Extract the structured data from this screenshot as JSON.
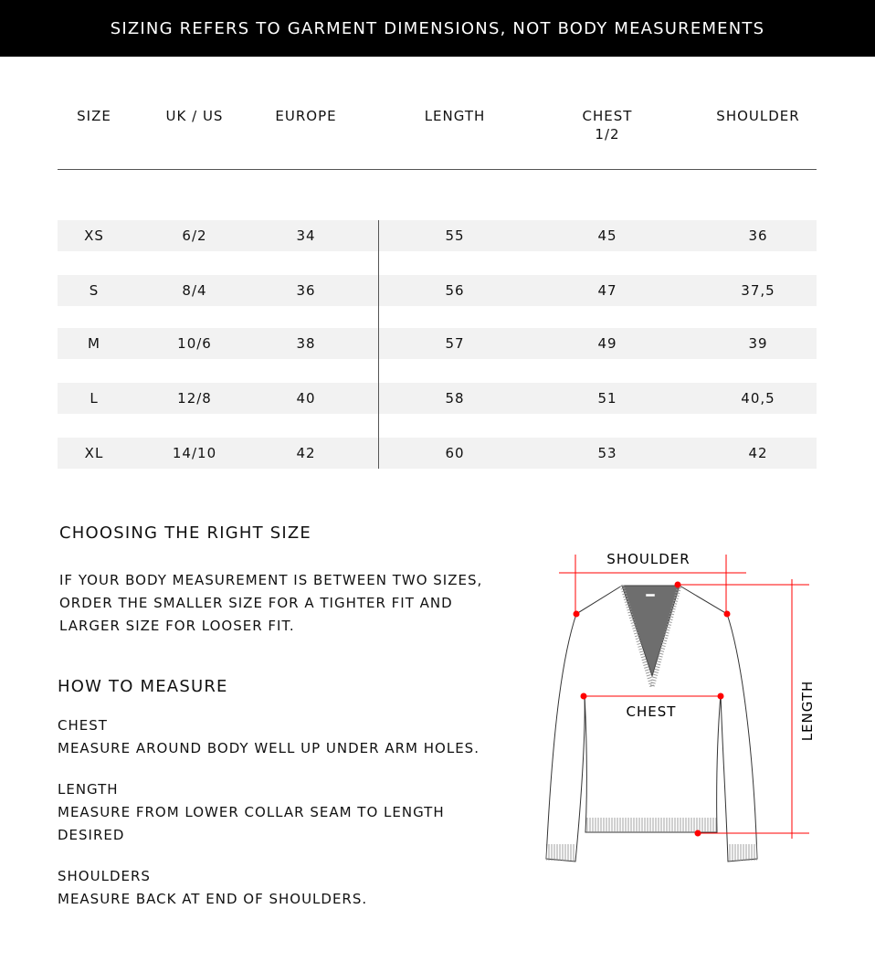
{
  "banner": "SIZING REFERS TO GARMENT DIMENSIONS, NOT BODY MEASUREMENTS",
  "table": {
    "headers": [
      "SIZE",
      "UK / US",
      "EUROPE",
      "LENGTH",
      "CHEST\n1/2",
      "SHOULDER"
    ],
    "rows": [
      [
        "XS",
        "6/2",
        "34",
        "55",
        "45",
        "36"
      ],
      [
        "S",
        "8/4",
        "36",
        "56",
        "47",
        "37,5"
      ],
      [
        "M",
        "10/6",
        "38",
        "57",
        "49",
        "39"
      ],
      [
        "L",
        "12/8",
        "40",
        "58",
        "51",
        "40,5"
      ],
      [
        "XL",
        "14/10",
        "42",
        "60",
        "53",
        "42"
      ]
    ]
  },
  "choosing": {
    "title": "CHOOSING THE RIGHT SIZE",
    "lines": [
      "IF YOUR BODY MEASUREMENT IS BETWEEN TWO SIZES,",
      "ORDER THE SMALLER SIZE FOR A TIGHTER FIT AND",
      "LARGER SIZE FOR LOOSER FIT."
    ]
  },
  "how": {
    "title": "HOW TO MEASURE",
    "items": [
      {
        "label": "CHEST",
        "lines": [
          "MEASURE AROUND BODY WELL UP UNDER ARM HOLES."
        ]
      },
      {
        "label": "LENGTH",
        "lines": [
          "MEASURE FROM LOWER COLLAR SEAM TO LENGTH",
          "DESIRED"
        ]
      },
      {
        "label": "SHOULDERS",
        "lines": [
          "MEASURE BACK AT END OF SHOULDERS."
        ]
      }
    ]
  },
  "diagram": {
    "shoulder": "SHOULDER",
    "chest": "CHEST",
    "length": "LENGTH",
    "accent": "#ff0000"
  }
}
